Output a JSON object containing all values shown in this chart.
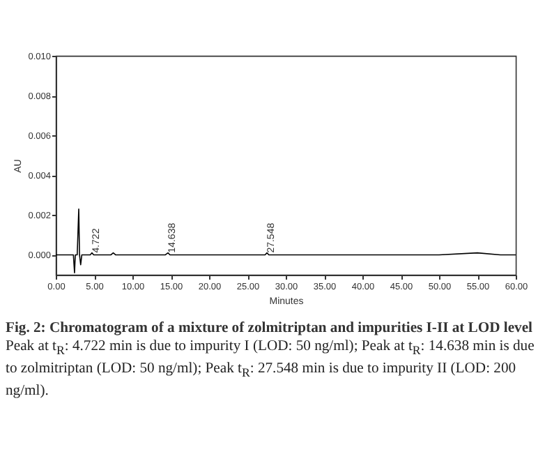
{
  "chart_data": {
    "type": "line",
    "title": "Fig. 2: Chromatogram of a mixture of zolmitriptan and impurities I-II at LOD level",
    "xlabel": "Minutes",
    "ylabel": "AU",
    "x": [
      0,
      2.0,
      2.3,
      2.45,
      2.55,
      2.8,
      3.0,
      3.1,
      3.25,
      3.4,
      4.0,
      4.5,
      4.722,
      4.95,
      6.0,
      7.2,
      7.5,
      7.8,
      10.0,
      14.3,
      14.638,
      14.9,
      20.0,
      27.3,
      27.548,
      27.8,
      40.0,
      50.0,
      55.0,
      58.0,
      60.0
    ],
    "series": [
      {
        "color": "#000000",
        "values": [
          0,
          0,
          0,
          -0.0009,
          0,
          0,
          0.0023,
          0,
          -0.0005,
          0,
          0,
          0,
          0.0001,
          0,
          0,
          0,
          0.0001,
          0,
          0,
          0,
          0.0001,
          0,
          0,
          0,
          0.0001,
          0,
          0,
          0,
          0.0001,
          0,
          0
        ]
      }
    ],
    "xlim": [
      0,
      60
    ],
    "xticks": [
      {
        "value": 0,
        "label": "0.00"
      },
      {
        "value": 5,
        "label": "5.00"
      },
      {
        "value": 10,
        "label": "10.00"
      },
      {
        "value": 15,
        "label": "15.00"
      },
      {
        "value": 20,
        "label": "20.00"
      },
      {
        "value": 25,
        "label": "25.00"
      },
      {
        "value": 30,
        "label": "30.00"
      },
      {
        "value": 35,
        "label": "35.00"
      },
      {
        "value": 40,
        "label": "40.00"
      },
      {
        "value": 45,
        "label": "45.00"
      },
      {
        "value": 50,
        "label": "50.00"
      },
      {
        "value": 55,
        "label": "55.00"
      },
      {
        "value": 60,
        "label": "60.00"
      }
    ],
    "ylim": [
      -0.001,
      0.01
    ],
    "yticks": [
      {
        "value": 0,
        "label": "0.000"
      },
      {
        "value": 0.002,
        "label": "0.002"
      },
      {
        "value": 0.004,
        "label": "0.004"
      },
      {
        "value": 0.006,
        "label": "0.006"
      },
      {
        "value": 0.008,
        "label": "0.008"
      },
      {
        "value": 0.01,
        "label": "0.010"
      }
    ],
    "annotations": [
      {
        "text": "4.722",
        "x": 4.722,
        "y": 0.0001
      },
      {
        "text": "14.638",
        "x": 14.638,
        "y": 0.0001
      },
      {
        "text": "27.548",
        "x": 27.548,
        "y": 0.0001
      },
      "Peak at t$_{R}$: 4.722 min is due to impurity I (LOD: 50 ng/ml); Peak at t$_{R}$: 14.638 min is due to zolmitriptan (LOD: 50 ng/ml); Peak t$_{R}$: 27.548 min is due to impurity II (LOD: 200 ng/ml)."
    ],
    "marker": "none",
    "line_style": "solid"
  }
}
